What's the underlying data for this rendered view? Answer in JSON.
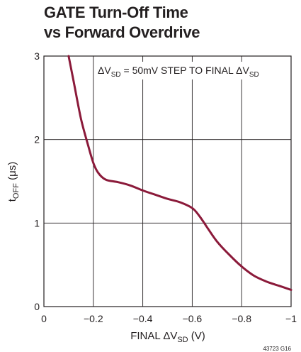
{
  "chart_data": {
    "type": "line",
    "title_lines": [
      "GATE Turn-Off Time",
      "vs Forward Overdrive"
    ],
    "xlabel": {
      "prefix": "FINAL ",
      "delta": "ΔV",
      "sub": "SD",
      "suffix": " (V)"
    },
    "ylabel": {
      "main": "t",
      "sub": "OFF",
      "suffix": " (μs)"
    },
    "annotation": {
      "a": "ΔV",
      "b": "SD",
      "c": " = 50mV STEP TO FINAL ",
      "d": "ΔV",
      "e": "SD"
    },
    "figure_code": "43723 G16",
    "xlim": [
      0,
      -1
    ],
    "ylim": [
      0,
      3
    ],
    "x_ticks": [
      0,
      -0.2,
      -0.4,
      -0.6,
      -0.8,
      -1
    ],
    "x_tick_labels": [
      "0",
      "−0.2",
      "−0.4",
      "−0.6",
      "−0.8",
      "−1"
    ],
    "y_ticks": [
      0,
      1,
      2,
      3
    ],
    "y_tick_labels": [
      "0",
      "1",
      "2",
      "3"
    ],
    "grid": true,
    "series": [
      {
        "color": "#8b1a3a",
        "x": [
          -0.1,
          -0.12,
          -0.15,
          -0.18,
          -0.2,
          -0.22,
          -0.25,
          -0.3,
          -0.35,
          -0.4,
          -0.45,
          -0.5,
          -0.55,
          -0.6,
          -0.63,
          -0.66,
          -0.7,
          -0.75,
          -0.8,
          -0.85,
          -0.9,
          -0.95,
          -1.0
        ],
        "y": [
          3.0,
          2.7,
          2.25,
          1.92,
          1.72,
          1.6,
          1.52,
          1.49,
          1.45,
          1.39,
          1.34,
          1.29,
          1.25,
          1.18,
          1.08,
          0.95,
          0.78,
          0.62,
          0.48,
          0.37,
          0.3,
          0.25,
          0.2
        ]
      }
    ]
  }
}
